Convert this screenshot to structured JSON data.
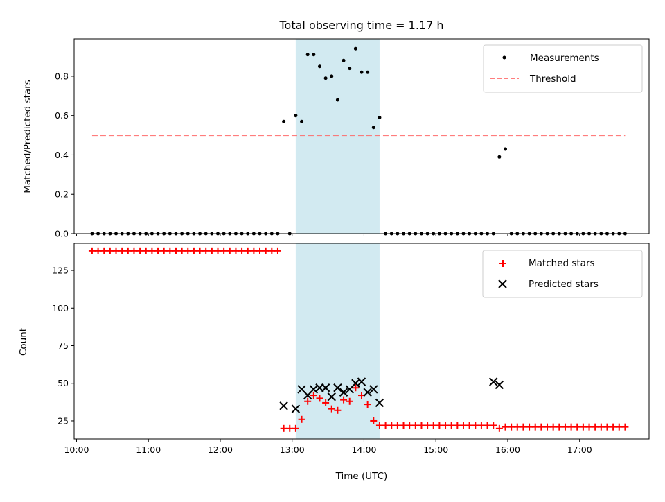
{
  "chart_data": [
    {
      "type": "scatter",
      "title": "Total observing time = 1.17 h",
      "xlabel": "",
      "ylabel": "Matched/Predicted stars",
      "xlim": [
        "09:58",
        "17:58"
      ],
      "ylim": [
        0,
        0.99
      ],
      "yticks": [
        0.0,
        0.2,
        0.4,
        0.6,
        0.8
      ],
      "ytick_labels": [
        "0.0",
        "0.2",
        "0.4",
        "0.6",
        "0.8"
      ],
      "xtick_labels": [],
      "grid": false,
      "legend_position": "top-right",
      "highlight_span": {
        "x_start": "13:03",
        "x_end": "14:13",
        "color": "#add8e6"
      },
      "series": [
        {
          "name": "Measurements",
          "color": "#000000",
          "marker": "dot",
          "x": [
            "10:13",
            "10:18",
            "10:23",
            "10:28",
            "10:33",
            "10:38",
            "10:43",
            "10:48",
            "10:53",
            "10:58",
            "11:03",
            "11:08",
            "11:13",
            "11:18",
            "11:23",
            "11:28",
            "11:33",
            "11:38",
            "11:43",
            "11:48",
            "11:53",
            "11:58",
            "12:03",
            "12:08",
            "12:13",
            "12:18",
            "12:23",
            "12:28",
            "12:33",
            "12:38",
            "12:43",
            "12:48",
            "12:58",
            "12:53",
            "13:03",
            "13:08",
            "13:13",
            "13:18",
            "13:23",
            "13:28",
            "13:33",
            "13:38",
            "13:43",
            "13:48",
            "13:53",
            "13:58",
            "14:03",
            "14:08",
            "14:13",
            "14:18",
            "14:23",
            "14:28",
            "14:33",
            "14:38",
            "14:43",
            "14:48",
            "14:53",
            "14:58",
            "15:03",
            "15:08",
            "15:13",
            "15:18",
            "15:23",
            "15:28",
            "15:33",
            "15:38",
            "15:43",
            "15:48",
            "15:53",
            "15:58",
            "16:03",
            "16:08",
            "16:13",
            "16:18",
            "16:23",
            "16:28",
            "16:33",
            "16:38",
            "16:43",
            "16:48",
            "16:53",
            "16:58",
            "17:03",
            "17:08",
            "17:13",
            "17:18",
            "17:23",
            "17:28",
            "17:33",
            "17:38"
          ],
          "y": [
            0,
            0,
            0,
            0,
            0,
            0,
            0,
            0,
            0,
            0,
            0,
            0,
            0,
            0,
            0,
            0,
            0,
            0,
            0,
            0,
            0,
            0,
            0,
            0,
            0,
            0,
            0,
            0,
            0,
            0,
            0,
            0,
            0,
            0.57,
            0.6,
            0.57,
            0.91,
            0.91,
            0.85,
            0.79,
            0.8,
            0.68,
            0.88,
            0.84,
            0.94,
            0.82,
            0.82,
            0.54,
            0.59,
            0,
            0,
            0,
            0,
            0,
            0,
            0,
            0,
            0,
            0,
            0,
            0,
            0,
            0,
            0,
            0,
            0,
            0,
            0,
            0.39,
            0.43,
            0,
            0,
            0,
            0,
            0,
            0,
            0,
            0,
            0,
            0,
            0,
            0,
            0,
            0,
            0,
            0,
            0,
            0,
            0,
            0
          ]
        },
        {
          "name": "Threshold",
          "color": "#ff6666",
          "style": "dashed",
          "x": [
            "10:13",
            "17:38"
          ],
          "y": [
            0.5,
            0.5
          ]
        }
      ]
    },
    {
      "type": "scatter",
      "title": "",
      "xlabel": "Time (UTC)",
      "ylabel": "Count",
      "xlim": [
        "09:58",
        "17:58"
      ],
      "ylim": [
        13,
        143
      ],
      "yticks": [
        25,
        50,
        75,
        100,
        125
      ],
      "ytick_labels": [
        "25",
        "50",
        "75",
        "100",
        "125"
      ],
      "xticks": [
        "10:00",
        "11:00",
        "12:00",
        "13:00",
        "14:00",
        "15:00",
        "16:00",
        "17:00"
      ],
      "xtick_labels": [
        "10:00",
        "11:00",
        "12:00",
        "13:00",
        "14:00",
        "15:00",
        "16:00",
        "17:00"
      ],
      "grid": false,
      "legend_position": "top-right",
      "highlight_span": {
        "x_start": "13:03",
        "x_end": "14:13",
        "color": "#add8e6"
      },
      "series": [
        {
          "name": "Matched stars",
          "color": "#ff0000",
          "marker": "plus",
          "x": [
            "10:13",
            "10:18",
            "10:23",
            "10:28",
            "10:33",
            "10:38",
            "10:43",
            "10:48",
            "10:53",
            "10:58",
            "11:03",
            "11:08",
            "11:13",
            "11:18",
            "11:23",
            "11:28",
            "11:33",
            "11:38",
            "11:43",
            "11:48",
            "11:53",
            "11:58",
            "12:03",
            "12:08",
            "12:13",
            "12:18",
            "12:23",
            "12:28",
            "12:33",
            "12:38",
            "12:43",
            "12:48",
            "12:53",
            "12:58",
            "13:03",
            "13:08",
            "13:13",
            "13:18",
            "13:23",
            "13:28",
            "13:33",
            "13:38",
            "13:43",
            "13:48",
            "13:53",
            "13:58",
            "14:03",
            "14:08",
            "14:13",
            "14:18",
            "14:23",
            "14:28",
            "14:33",
            "14:38",
            "14:43",
            "14:48",
            "14:53",
            "14:58",
            "15:03",
            "15:08",
            "15:13",
            "15:18",
            "15:23",
            "15:28",
            "15:33",
            "15:38",
            "15:43",
            "15:48",
            "15:53",
            "15:58",
            "16:03",
            "16:08",
            "16:13",
            "16:18",
            "16:23",
            "16:28",
            "16:33",
            "16:38",
            "16:43",
            "16:48",
            "16:53",
            "16:58",
            "17:03",
            "17:08",
            "17:13",
            "17:18",
            "17:23",
            "17:28",
            "17:33",
            "17:38"
          ],
          "y": [
            138,
            138,
            138,
            138,
            138,
            138,
            138,
            138,
            138,
            138,
            138,
            138,
            138,
            138,
            138,
            138,
            138,
            138,
            138,
            138,
            138,
            138,
            138,
            138,
            138,
            138,
            138,
            138,
            138,
            138,
            138,
            138,
            20,
            20,
            20,
            26,
            38,
            42,
            40,
            37,
            33,
            32,
            39,
            38,
            47,
            42,
            36,
            25,
            22,
            22,
            22,
            22,
            22,
            22,
            22,
            22,
            22,
            22,
            22,
            22,
            22,
            22,
            22,
            22,
            22,
            22,
            22,
            22,
            20,
            21,
            21,
            21,
            21,
            21,
            21,
            21,
            21,
            21,
            21,
            21,
            21,
            21,
            21,
            21,
            21,
            21,
            21,
            21,
            21,
            21
          ]
        },
        {
          "name": "Predicted stars",
          "color": "#000000",
          "marker": "x",
          "x": [
            "12:53",
            "13:03",
            "13:08",
            "13:13",
            "13:18",
            "13:23",
            "13:28",
            "13:33",
            "13:38",
            "13:43",
            "13:48",
            "13:53",
            "13:58",
            "14:03",
            "14:08",
            "14:13",
            "15:48",
            "15:53"
          ],
          "y": [
            35,
            33,
            46,
            42,
            46,
            47,
            47,
            41,
            47,
            44,
            46,
            50,
            51,
            44,
            46,
            37,
            51,
            49
          ]
        }
      ]
    }
  ]
}
